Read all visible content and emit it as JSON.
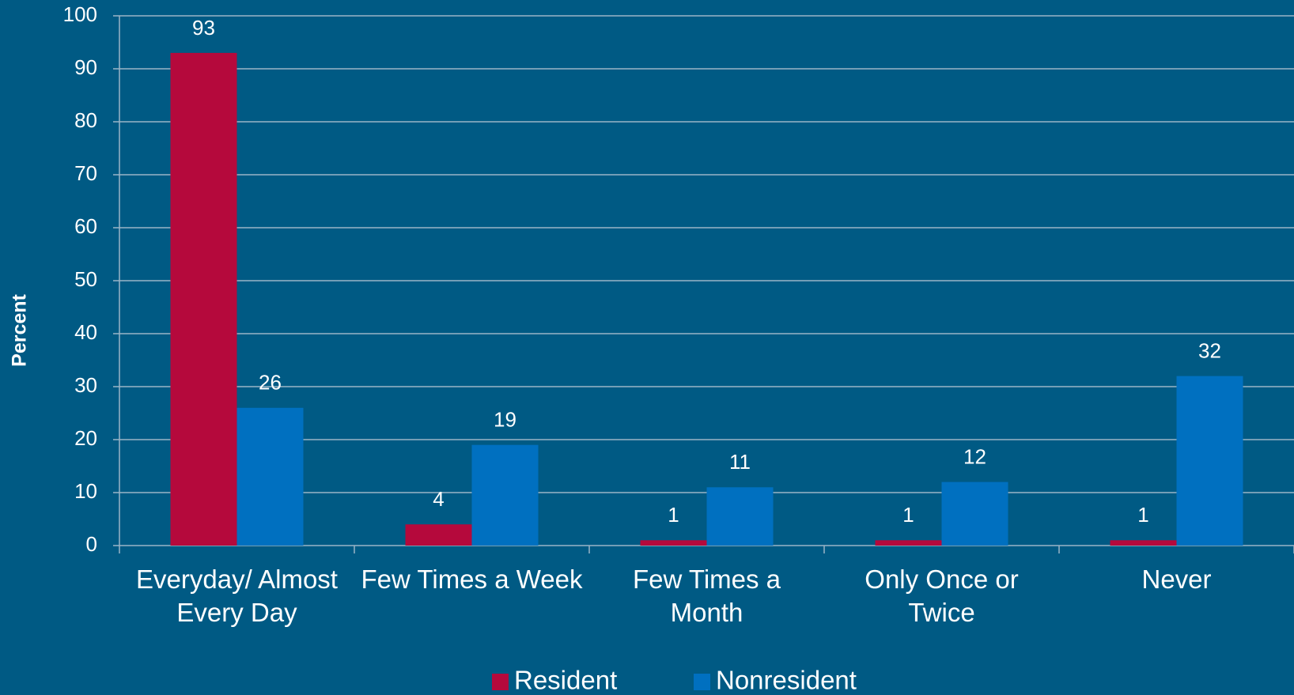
{
  "chart_data": {
    "type": "bar",
    "y_label": "Percent",
    "categories": [
      "Everyday/ Almost Every Day",
      "Few Times a Week",
      "Few Times a Month",
      "Only Once or Twice",
      "Never"
    ],
    "series": [
      {
        "name": "Resident",
        "color": "#b5093c",
        "values": [
          93,
          4,
          1,
          1,
          1
        ]
      },
      {
        "name": "Nonresident",
        "color": "#0070c0",
        "values": [
          26,
          19,
          11,
          12,
          32
        ]
      }
    ],
    "ylim": [
      0,
      100
    ],
    "yticks": [
      0,
      10,
      20,
      30,
      40,
      50,
      60,
      70,
      80,
      90,
      100
    ],
    "grid": true,
    "legend": "bottom"
  }
}
